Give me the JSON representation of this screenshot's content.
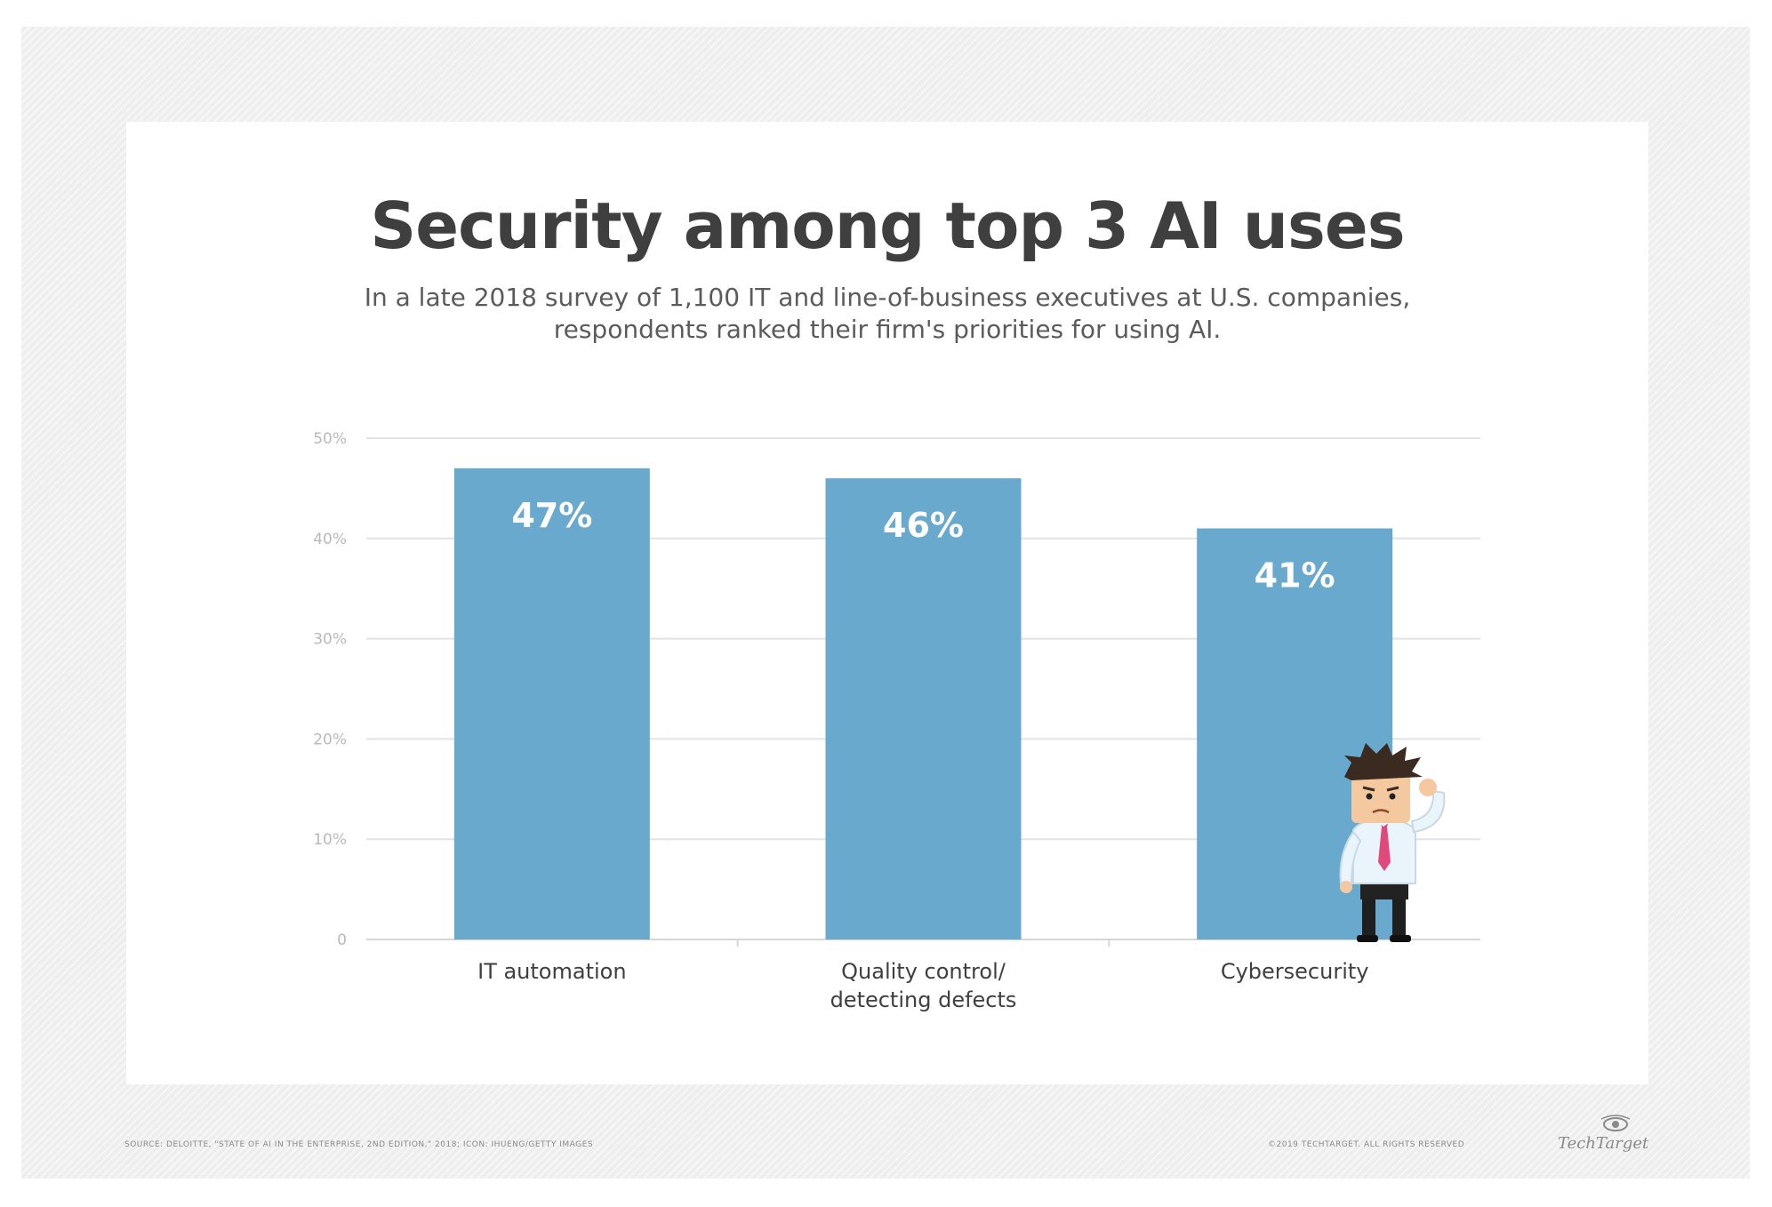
{
  "title": "Security among top 3 AI uses",
  "subtitle": {
    "line1": "In a late 2018 survey of 1,100 IT and line-of-business executives at U.S. companies,",
    "line2": "respondents ranked their firm's priorities for using AI."
  },
  "colors": {
    "bar": "#6aa9ce",
    "grid": "#e2e2e2",
    "tick": "#b9b9b9",
    "category": "#3f3f40",
    "data_label": "#ffffff"
  },
  "chart_data": {
    "type": "bar",
    "title": "Security among top 3 AI uses",
    "xlabel": "",
    "ylabel": "",
    "categories": [
      [
        "IT automation"
      ],
      [
        "Quality control/",
        "detecting defects"
      ],
      [
        "Cybersecurity"
      ]
    ],
    "values": [
      47,
      46,
      41
    ],
    "data_labels": [
      "47%",
      "46%",
      "41%"
    ],
    "y_ticks": [
      0,
      10,
      20,
      30,
      40,
      50
    ],
    "y_tick_labels": [
      "0",
      "10%",
      "20%",
      "30%",
      "40%",
      "50%"
    ],
    "ylim": [
      0,
      50
    ],
    "grid": true,
    "legend": "none"
  },
  "illustration": {
    "icon": "worried-businessman-icon"
  },
  "footer": {
    "source": "SOURCE: DELOITTE, \"STATE OF AI IN THE ENTERPRISE, 2ND EDITION,\" 2018; ICON: IHUENG/GETTY IMAGES",
    "copyright": "©2019 TECHTARGET. ALL RIGHTS RESERVED",
    "brand": "TechTarget"
  }
}
